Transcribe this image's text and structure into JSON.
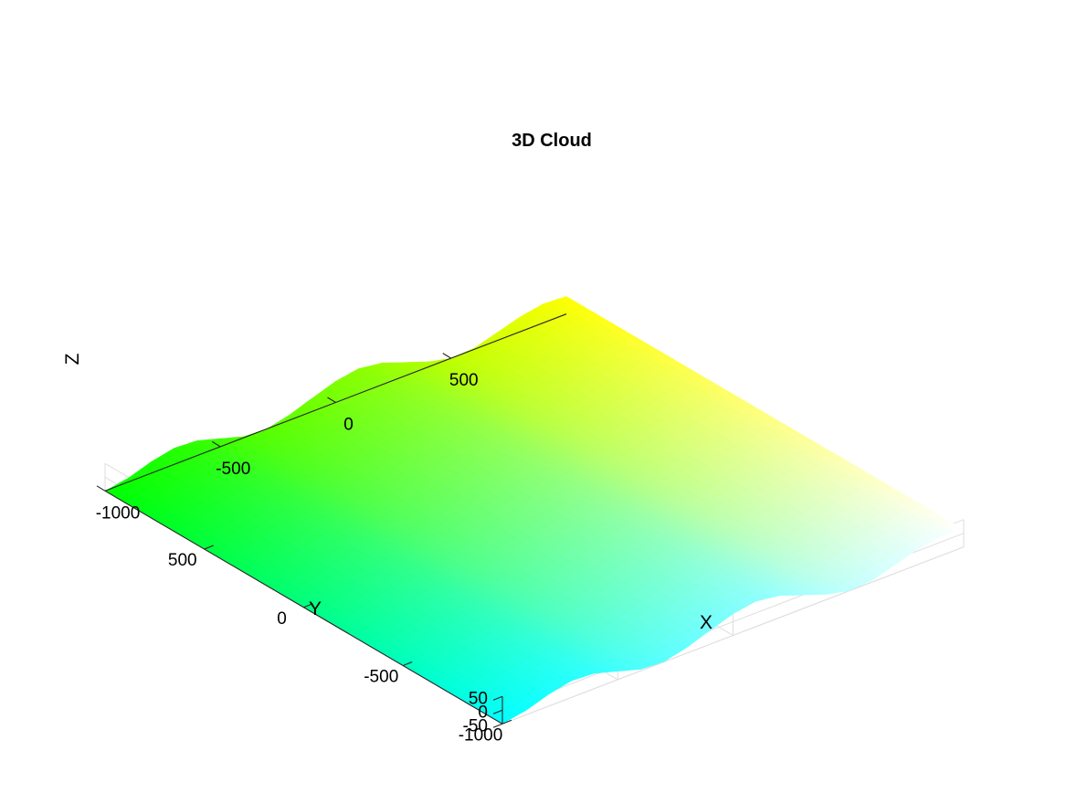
{
  "chart_data": {
    "type": "surface",
    "title": "3D Cloud",
    "xlabel": "X",
    "ylabel": "Y",
    "zlabel": "Z",
    "xlim": [
      -1000,
      1000
    ],
    "ylim": [
      -1000,
      1000
    ],
    "zlim": [
      -50,
      50
    ],
    "xticks": [
      -1000,
      -500,
      0,
      500
    ],
    "yticks": [
      -1000,
      -500,
      0,
      500
    ],
    "zticks": [
      -50,
      0,
      50
    ],
    "grid": true,
    "surface": {
      "description_of_shape": "z varies sinusoidally along X, roughly constant along Y",
      "x": [
        -1000,
        -900,
        -800,
        -700,
        -600,
        -500,
        -400,
        -300,
        -200,
        -100,
        0,
        100,
        200,
        300,
        400,
        500,
        600,
        700,
        800,
        900,
        1000
      ],
      "z": [
        -50,
        -35,
        -8,
        10,
        5,
        -20,
        -45,
        -50,
        -30,
        0,
        28,
        42,
        30,
        0,
        -30,
        -50,
        -45,
        -20,
        5,
        20,
        15
      ]
    },
    "colormap": {
      "corner_colors": {
        "x_min_y_max": "#00ff00",
        "x_min_y_min": "#00ffff",
        "x_max_y_min": "#ffffff",
        "x_max_y_max": "#ffff00"
      }
    }
  }
}
